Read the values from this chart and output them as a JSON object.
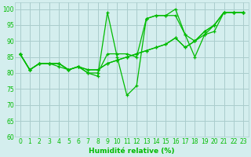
{
  "background_color": "#d4eeee",
  "grid_color": "#aacccc",
  "line_color": "#00bb00",
  "xlabel": "Humidité relative (%)",
  "xlim": [
    -0.5,
    23.5
  ],
  "ylim": [
    60,
    102
  ],
  "yticks": [
    60,
    65,
    70,
    75,
    80,
    85,
    90,
    95,
    100
  ],
  "xticks": [
    0,
    1,
    2,
    3,
    4,
    5,
    6,
    7,
    8,
    9,
    10,
    11,
    12,
    13,
    14,
    15,
    16,
    17,
    18,
    19,
    20,
    21,
    22,
    23
  ],
  "series": [
    [
      86,
      81,
      83,
      83,
      82,
      81,
      82,
      80,
      79,
      99,
      85,
      73,
      76,
      97,
      98,
      98,
      100,
      92,
      85,
      92,
      95,
      99,
      99,
      99
    ],
    [
      86,
      81,
      83,
      83,
      83,
      81,
      82,
      80,
      80,
      86,
      86,
      86,
      85,
      97,
      98,
      98,
      98,
      92,
      90,
      93,
      95,
      99,
      99,
      99
    ],
    [
      86,
      81,
      83,
      83,
      83,
      81,
      82,
      81,
      81,
      83,
      84,
      85,
      86,
      87,
      88,
      89,
      91,
      88,
      90,
      92,
      93,
      99,
      99,
      99
    ],
    [
      86,
      81,
      83,
      83,
      83,
      81,
      82,
      81,
      81,
      83,
      84,
      85,
      86,
      87,
      88,
      89,
      91,
      88,
      90,
      93,
      95,
      99,
      99,
      99
    ]
  ]
}
